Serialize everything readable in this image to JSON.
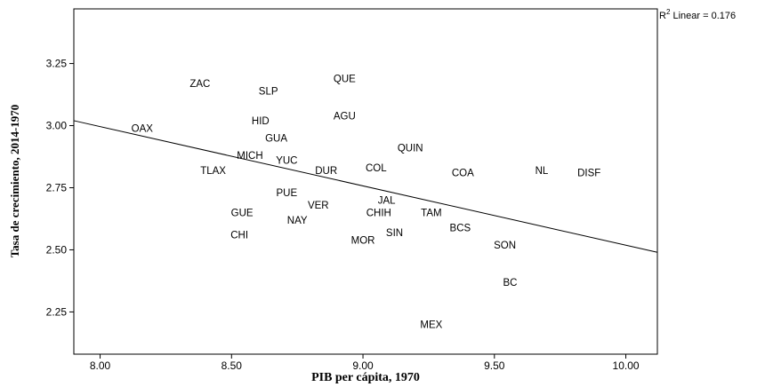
{
  "chart_data": {
    "type": "scatter",
    "title": "",
    "xlabel": "PIB per cápita, 1970",
    "ylabel": "Tasa de crecimiento, 2014-1970",
    "xlim": [
      7.9,
      10.12
    ],
    "ylim": [
      2.08,
      3.47
    ],
    "x_ticks": [
      {
        "value": 8.0,
        "label": "8.00"
      },
      {
        "value": 8.5,
        "label": "8.50"
      },
      {
        "value": 9.0,
        "label": "9.00"
      },
      {
        "value": 9.5,
        "label": "9.50"
      },
      {
        "value": 10.0,
        "label": "10.00"
      }
    ],
    "y_ticks": [
      {
        "value": 2.25,
        "label": "2.25"
      },
      {
        "value": 2.5,
        "label": "2.50"
      },
      {
        "value": 2.75,
        "label": "2.75"
      },
      {
        "value": 3.0,
        "label": "3.00"
      },
      {
        "value": 3.25,
        "label": "3.25"
      }
    ],
    "grid": false,
    "fit_line": {
      "label_prefix": "R",
      "label_sup": "2",
      "label_suffix": " Linear = 0.176",
      "r2": 0.176,
      "points": [
        [
          7.9,
          3.02
        ],
        [
          10.12,
          2.49
        ]
      ]
    },
    "points": [
      {
        "label": "ZAC",
        "x": 8.38,
        "y": 3.17
      },
      {
        "label": "SLP",
        "x": 8.64,
        "y": 3.14
      },
      {
        "label": "QUE",
        "x": 8.93,
        "y": 3.19
      },
      {
        "label": "AGU",
        "x": 8.93,
        "y": 3.04
      },
      {
        "label": "HID",
        "x": 8.61,
        "y": 3.02
      },
      {
        "label": "OAX",
        "x": 8.16,
        "y": 2.99
      },
      {
        "label": "GUA",
        "x": 8.67,
        "y": 2.95
      },
      {
        "label": "QUIN",
        "x": 9.18,
        "y": 2.91
      },
      {
        "label": "MICH",
        "x": 8.57,
        "y": 2.88
      },
      {
        "label": "YUC",
        "x": 8.71,
        "y": 2.86
      },
      {
        "label": "TLAX",
        "x": 8.43,
        "y": 2.82
      },
      {
        "label": "DUR",
        "x": 8.86,
        "y": 2.82
      },
      {
        "label": "COL",
        "x": 9.05,
        "y": 2.83
      },
      {
        "label": "COA",
        "x": 9.38,
        "y": 2.81
      },
      {
        "label": "NL",
        "x": 9.68,
        "y": 2.82
      },
      {
        "label": "DISF",
        "x": 9.86,
        "y": 2.81
      },
      {
        "label": "PUE",
        "x": 8.71,
        "y": 2.73
      },
      {
        "label": "JAL",
        "x": 9.09,
        "y": 2.7
      },
      {
        "label": "VER",
        "x": 8.83,
        "y": 2.68
      },
      {
        "label": "GUE",
        "x": 8.54,
        "y": 2.65
      },
      {
        "label": "CHIH",
        "x": 9.06,
        "y": 2.65
      },
      {
        "label": "TAM",
        "x": 9.26,
        "y": 2.65
      },
      {
        "label": "NAY",
        "x": 8.75,
        "y": 2.62
      },
      {
        "label": "BCS",
        "x": 9.37,
        "y": 2.59
      },
      {
        "label": "SIN",
        "x": 9.12,
        "y": 2.57
      },
      {
        "label": "CHI",
        "x": 8.53,
        "y": 2.56
      },
      {
        "label": "MOR",
        "x": 9.0,
        "y": 2.54
      },
      {
        "label": "SON",
        "x": 9.54,
        "y": 2.52
      },
      {
        "label": "BC",
        "x": 9.56,
        "y": 2.37
      },
      {
        "label": "MEX",
        "x": 9.26,
        "y": 2.2
      }
    ]
  }
}
